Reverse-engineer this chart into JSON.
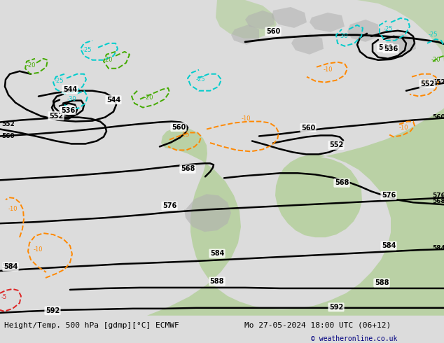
{
  "title_left": "Height/Temp. 500 hPa [gdmp][°C] ECMWF",
  "title_right": "Mo 27-05-2024 18:00 UTC (06+12)",
  "copyright": "© weatheronline.co.uk",
  "bg_color": "#dcdcdc",
  "map_bg": "#e8e8e8",
  "land_green": "#a8cc88",
  "land_gray": "#b0b0b0",
  "contour_color": "#000000",
  "temp_orange_color": "#ff8800",
  "temp_cyan_color": "#00cccc",
  "temp_red_color": "#dd2222",
  "temp_green_color": "#44aa00",
  "bottom_bar_color": "#c8c8c8",
  "fig_width": 6.34,
  "fig_height": 4.9,
  "dpi": 100
}
